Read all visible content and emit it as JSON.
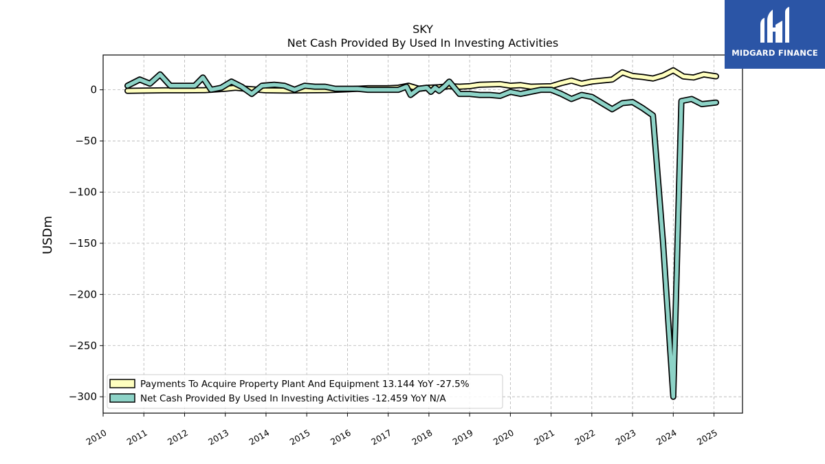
{
  "chart_data": {
    "type": "line",
    "title": "SKY",
    "subtitle": "Net Cash Provided By Used In Investing Activities",
    "ylabel": "USDm",
    "xlabel": "",
    "xlim": [
      2010.0,
      2025.7
    ],
    "ylim": [
      -316,
      34
    ],
    "yticks": [
      0,
      -50,
      -100,
      -150,
      -200,
      -250,
      -300
    ],
    "ytick_labels": [
      "0",
      "−50",
      "−100",
      "−150",
      "−200",
      "−250",
      "−300"
    ],
    "xticks": [
      2010,
      2011,
      2012,
      2013,
      2014,
      2015,
      2016,
      2017,
      2018,
      2019,
      2020,
      2021,
      2022,
      2023,
      2024,
      2025
    ],
    "grid": true,
    "legend_position": "lower-left",
    "series": [
      {
        "name": "Payments To Acquire Property Plant And Equipment  13.144 YoY -27.5%",
        "color": "#ffffbf",
        "x": [
          2010.6,
          2011.0,
          2011.5,
          2012.0,
          2012.5,
          2013.0,
          2013.25,
          2013.5,
          2014.0,
          2014.5,
          2015.0,
          2015.5,
          2016.0,
          2016.5,
          2017.0,
          2017.25,
          2017.5,
          2017.75,
          2018.0,
          2018.25,
          2018.5,
          2018.75,
          2019.0,
          2019.25,
          2019.75,
          2020.0,
          2020.25,
          2020.5,
          2021.0,
          2021.25,
          2021.5,
          2021.75,
          2022.0,
          2022.25,
          2022.5,
          2022.75,
          2023.0,
          2023.25,
          2023.5,
          2023.75,
          2024.0,
          2024.25,
          2024.5,
          2024.75,
          2025.05
        ],
        "y": [
          -1.0,
          -0.8,
          -0.5,
          -0.5,
          -0.3,
          1.0,
          2.0,
          1.0,
          -0.5,
          -0.8,
          -0.5,
          -0.3,
          0.5,
          1.5,
          1.5,
          2.0,
          4.0,
          1.0,
          2.0,
          2.5,
          3.5,
          3.0,
          3.5,
          5.0,
          5.5,
          4.0,
          4.5,
          3.0,
          3.5,
          6.5,
          9.0,
          6.0,
          8.0,
          9.0,
          10.0,
          17.0,
          13.5,
          12.5,
          11.0,
          14.0,
          19.0,
          13.0,
          12.0,
          15.0,
          13.144
        ]
      },
      {
        "name": "Net Cash Provided By Used In Investing Activities  -12.459 YoY N/A",
        "color": "#8dd3c7",
        "x": [
          2010.6,
          2010.9,
          2011.15,
          2011.4,
          2011.65,
          2012.0,
          2012.25,
          2012.45,
          2012.65,
          2012.9,
          2013.15,
          2013.4,
          2013.65,
          2013.9,
          2014.2,
          2014.45,
          2014.7,
          2014.95,
          2015.2,
          2015.45,
          2015.7,
          2016.0,
          2016.25,
          2016.5,
          2016.75,
          2017.0,
          2017.25,
          2017.45,
          2017.55,
          2017.75,
          2017.95,
          2018.05,
          2018.15,
          2018.25,
          2018.4,
          2018.5,
          2018.75,
          2019.0,
          2019.25,
          2019.5,
          2019.75,
          2020.0,
          2020.25,
          2020.5,
          2020.75,
          2021.0,
          2021.25,
          2021.5,
          2021.75,
          2022.0,
          2022.25,
          2022.5,
          2022.75,
          2023.0,
          2023.25,
          2023.5,
          2023.75,
          2024.0,
          2024.2,
          2024.45,
          2024.7,
          2025.05
        ],
        "y": [
          4,
          10,
          6,
          15,
          4,
          4,
          4,
          12,
          0,
          2,
          8,
          3,
          -4,
          4,
          5,
          4,
          0,
          4,
          3,
          3,
          1,
          1,
          1,
          0,
          0,
          0,
          0,
          3,
          -5,
          1,
          2,
          -2,
          2,
          -1,
          4,
          8,
          -4,
          -4,
          -5,
          -5,
          -6,
          -2,
          -4,
          -2,
          0,
          0,
          -4,
          -9,
          -5,
          -7,
          -13,
          -19,
          -13,
          -12,
          -18,
          -25,
          -150,
          -300,
          -11,
          -9,
          -14,
          -12.459
        ]
      }
    ]
  },
  "logo": {
    "name": "MIDGARD FINANCE"
  }
}
